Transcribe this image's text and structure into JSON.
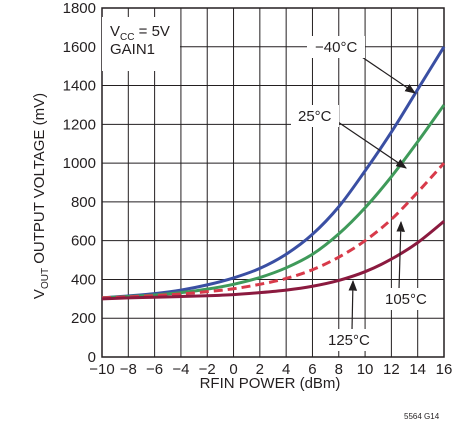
{
  "chart_data": {
    "type": "line",
    "xlabel": "RFIN POWER (dBm)",
    "ylabel_main": "V",
    "ylabel_sub": "OUT",
    "ylabel_rest": " OUTPUT VOLTAGE (mV)",
    "xlim": [
      -10,
      16
    ],
    "ylim": [
      0,
      1800
    ],
    "x_ticks": [
      -10,
      -8,
      -6,
      -4,
      -2,
      0,
      2,
      4,
      6,
      8,
      10,
      12,
      14,
      16
    ],
    "x_tick_labels": [
      "−10",
      "−8",
      "−6",
      "−4",
      "−2",
      "0",
      "2",
      "4",
      "6",
      "8",
      "10",
      "12",
      "14",
      "16"
    ],
    "y_ticks": [
      0,
      200,
      400,
      600,
      800,
      1000,
      1200,
      1400,
      1600,
      1800
    ],
    "y_tick_labels": [
      "0",
      "200",
      "400",
      "600",
      "800",
      "1000",
      "1200",
      "1400",
      "1600",
      "1800"
    ],
    "grid": true,
    "conditions": {
      "vcc_main": "V",
      "vcc_sub": "CC",
      "vcc_rest": " = 5V",
      "gain": "GAIN1"
    },
    "figure_id": "5564 G14",
    "series": [
      {
        "name": "−40°C",
        "color": "#3a4fa3",
        "dash": "solid",
        "x": [
          -10,
          -8,
          -6,
          -4,
          -2,
          0,
          2,
          4,
          6,
          8,
          10,
          12,
          14,
          16
        ],
        "y": [
          305,
          315,
          327,
          345,
          372,
          408,
          457,
          530,
          633,
          775,
          960,
          1160,
          1380,
          1600
        ]
      },
      {
        "name": "25°C",
        "color": "#3f9a5a",
        "dash": "solid",
        "x": [
          -10,
          -8,
          -6,
          -4,
          -2,
          0,
          2,
          4,
          6,
          8,
          10,
          12,
          14,
          16
        ],
        "y": [
          305,
          312,
          320,
          332,
          350,
          375,
          410,
          460,
          530,
          635,
          770,
          930,
          1110,
          1300
        ]
      },
      {
        "name": "105°C",
        "color": "#d83a4a",
        "dash": "dashed",
        "x": [
          -10,
          -8,
          -6,
          -4,
          -2,
          0,
          2,
          4,
          6,
          8,
          10,
          12,
          14,
          16
        ],
        "y": [
          305,
          310,
          317,
          325,
          337,
          352,
          375,
          405,
          450,
          515,
          600,
          710,
          850,
          1000
        ]
      },
      {
        "name": "125°C",
        "color": "#8b1a3f",
        "dash": "solid",
        "x": [
          -10,
          -8,
          -6,
          -4,
          -2,
          0,
          2,
          4,
          6,
          8,
          10,
          12,
          14,
          16
        ],
        "y": [
          300,
          305,
          308,
          312,
          316,
          322,
          332,
          345,
          365,
          395,
          440,
          505,
          590,
          700
        ]
      }
    ]
  }
}
